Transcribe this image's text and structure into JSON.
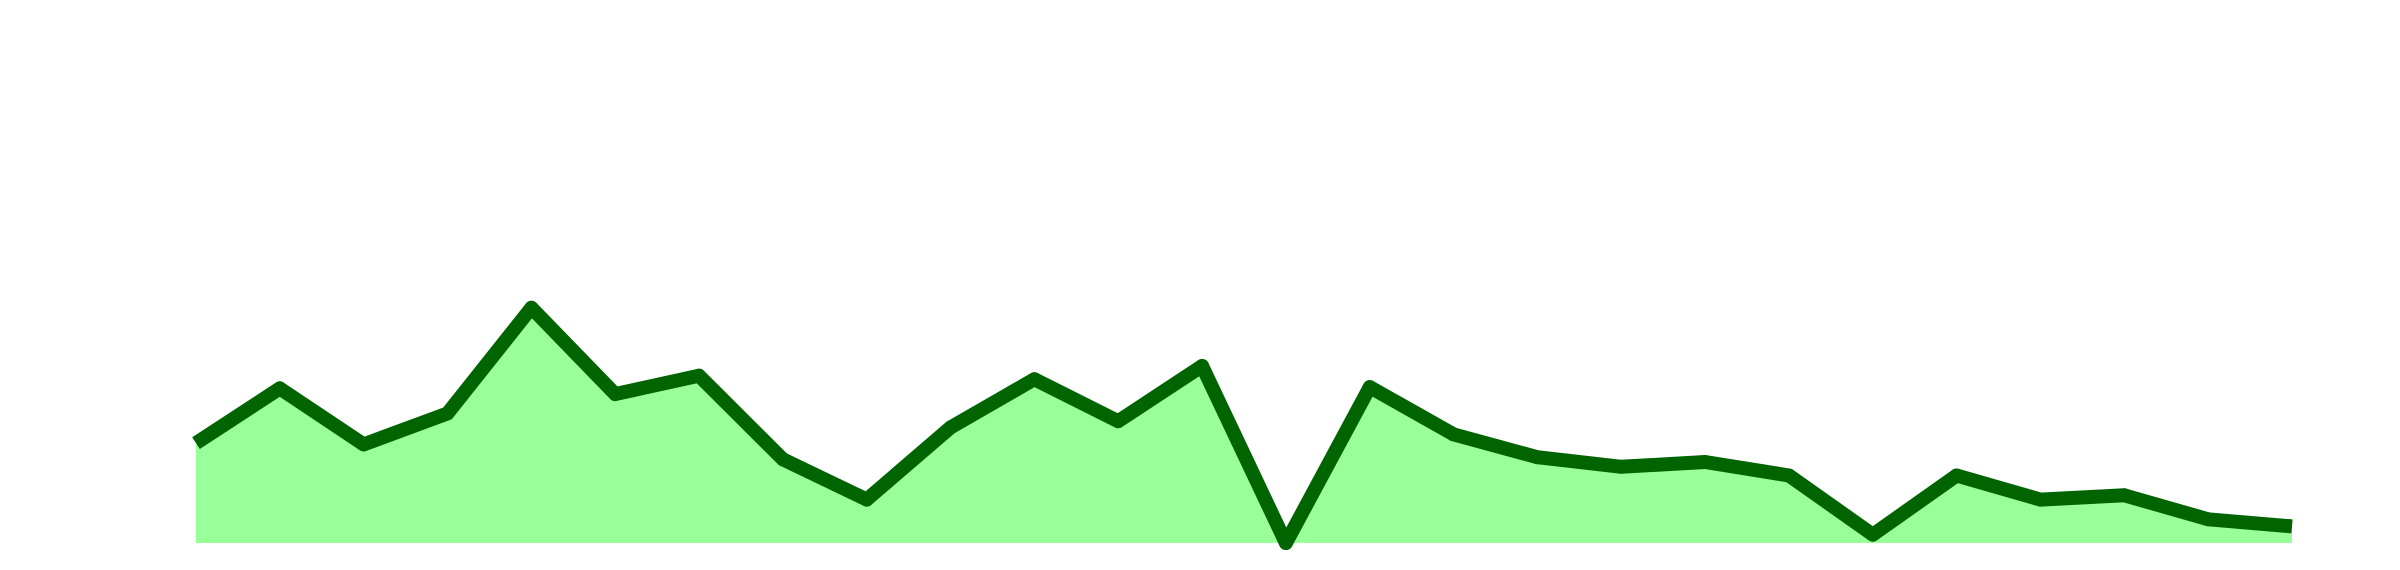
{
  "chart_data": {
    "type": "area",
    "title": "",
    "xlabel": "",
    "ylabel": "",
    "grid": false,
    "legend": "none",
    "ylim": [
      0,
      100
    ],
    "x": [
      0,
      1,
      2,
      3,
      4,
      5,
      6,
      7,
      8,
      9,
      10,
      11,
      12,
      13,
      14,
      15,
      16,
      17,
      18,
      19,
      20,
      21,
      22,
      23,
      24,
      25
    ],
    "series": [
      {
        "values": [
          22.8,
          35.3,
          22.5,
          29.6,
          53.7,
          34.0,
          38.2,
          19.1,
          9.9,
          26.4,
          37.4,
          27.8,
          40.4,
          0,
          35.6,
          24.8,
          19.6,
          17.4,
          18.5,
          15.4,
          1.9,
          15.4,
          9.9,
          10.9,
          5.4,
          3.8
        ]
      }
    ],
    "colors": {
      "line": "#006400",
      "fill": "#99ff99"
    }
  }
}
